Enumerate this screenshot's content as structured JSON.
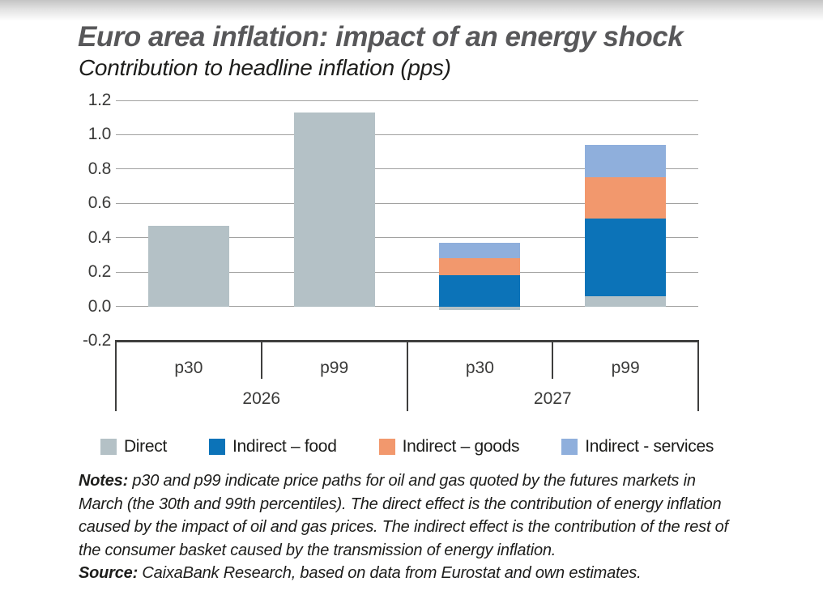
{
  "chart_data": {
    "type": "bar",
    "stacked": true,
    "title": "Euro area inflation: impact of an energy shock",
    "subtitle": "Contribution to headline inflation (pps)",
    "categories": [
      "p30",
      "p99",
      "p30",
      "p99"
    ],
    "group_labels": [
      {
        "label": "2026",
        "span": [
          0,
          1
        ]
      },
      {
        "label": "2027",
        "span": [
          2,
          3
        ]
      }
    ],
    "series": [
      {
        "name": "Direct",
        "color": "#b4c1c6",
        "values": [
          0.47,
          1.13,
          -0.02,
          0.06
        ]
      },
      {
        "name": "Indirect – food",
        "color": "#0c73b8",
        "values": [
          0,
          0,
          0.18,
          0.45
        ]
      },
      {
        "name": "Indirect – goods",
        "color": "#f2986d",
        "values": [
          0,
          0,
          0.1,
          0.24
        ]
      },
      {
        "name": "Indirect - services",
        "color": "#8fafdc",
        "values": [
          0,
          0,
          0.09,
          0.19
        ]
      }
    ],
    "ylim": [
      -0.2,
      1.2
    ],
    "ytick_labels": [
      "1.2",
      "1.0",
      "0.8",
      "0.6",
      "0.4",
      "0.2",
      "0.0",
      "-0.2"
    ],
    "grid": "horizontal-only",
    "legend_position": "bottom"
  },
  "colors": {
    "gridline": "#a1a1a0",
    "axis": "#3f3f3e",
    "title_text": "#58585a",
    "body_text": "#1d1d1b"
  },
  "footer": {
    "notes_label": "Notes:",
    "notes_text": " p30 and p99 indicate price paths for oil and gas quoted by the futures markets in March (the 30th and 99th percentiles). The direct effect is the contribution of energy inflation caused by the impact of oil and gas prices. The indirect effect is the contribution of the rest of the consumer basket caused by the transmission of energy inflation.",
    "source_label": "Source:",
    "source_text": " CaixaBank Research, based on data from Eurostat and own estimates."
  }
}
